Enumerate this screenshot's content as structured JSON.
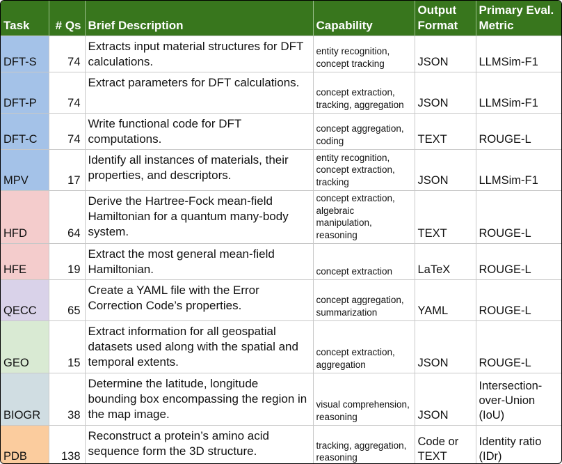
{
  "header": {
    "task": "Task",
    "qs": "# Qs",
    "desc": "Brief Description",
    "cap": "Capability",
    "fmt": "Output Format",
    "metric": "Primary Eval. Metric"
  },
  "rows": [
    {
      "task": "DFT-S",
      "qs": "74",
      "desc": "Extracts input material structures for DFT calculations.",
      "cap": "entity recognition, concept tracking",
      "fmt": "JSON",
      "metric": "LLMSim-F1",
      "color": "#a4c2e8"
    },
    {
      "task": "DFT-P",
      "qs": "74",
      "desc": "Extract parameters for DFT calculations.",
      "cap": "concept extraction, tracking, aggregation",
      "fmt": "JSON",
      "metric": "LLMSim-F1",
      "color": "#a4c2e8"
    },
    {
      "task": "DFT-C",
      "qs": "74",
      "desc": "Write functional code for DFT computations.",
      "cap": "concept aggregation, coding",
      "fmt": "TEXT",
      "metric": "ROUGE-L",
      "color": "#a4c2e8"
    },
    {
      "task": "MPV",
      "qs": "17",
      "desc": "Identify all instances of materials, their properties, and descriptors.",
      "cap": "entity recognition, concept extraction, tracking",
      "fmt": "JSON",
      "metric": "LLMSim-F1",
      "color": "#a4c2e8"
    },
    {
      "task": "HFD",
      "qs": "64",
      "desc": "Derive the Hartree-Fock mean-field Hamiltonian for a quantum many-body system.",
      "cap": "concept extraction, algebraic manipulation, reasoning",
      "fmt": "TEXT",
      "metric": "ROUGE-L",
      "color": "#f4cccc"
    },
    {
      "task": "HFE",
      "qs": "19",
      "desc": "Extract the most general mean-field Hamiltonian.",
      "cap": "concept extraction",
      "fmt": "LaTeX",
      "metric": "ROUGE-L",
      "color": "#f4cccc"
    },
    {
      "task": "QECC",
      "qs": "65",
      "desc": "Create a YAML file with the Error Correction Code’s properties.",
      "cap": "concept aggregation, summarization",
      "fmt": "YAML",
      "metric": "ROUGE-L",
      "color": "#d9d2e9"
    },
    {
      "task": "GEO",
      "qs": "15",
      "desc": "Extract information for all geospatial datasets used along with the spatial and temporal extents.",
      "cap": "concept extraction, aggregation",
      "fmt": "JSON",
      "metric": "ROUGE-L",
      "color": "#d9ead3"
    },
    {
      "task": "BIOGR",
      "qs": "38",
      "desc": "Determine the latitude, longitude bounding box encompassing the region in the map image.",
      "cap": "visual comprehension, reasoning",
      "fmt": "JSON",
      "metric": "Intersection-over-Union (IoU)",
      "color": "#d0dde2"
    },
    {
      "task": "PDB",
      "qs": "138",
      "desc": "Reconstruct a protein’s amino acid sequence form the 3D structure.",
      "cap": "tracking, aggregation, reasoning",
      "fmt": "Code or TEXT",
      "metric": "Identity ratio (IDr)",
      "color": "#fbcc9e"
    }
  ]
}
